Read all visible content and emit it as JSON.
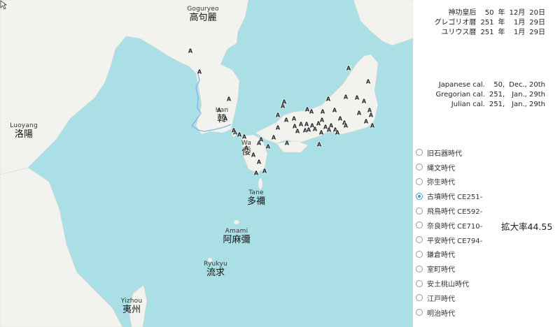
{
  "regions": [
    {
      "id": "goguryeo",
      "en": "Goguryeo",
      "jp": "高句麗"
    },
    {
      "id": "luoyang",
      "en": "Luoyang",
      "jp": "洛陽"
    },
    {
      "id": "han",
      "en": "Han",
      "jp": "韓"
    },
    {
      "id": "wa",
      "en": "Wa",
      "jp": "倭"
    },
    {
      "id": "tane",
      "en": "Tane",
      "jp": "多禰"
    },
    {
      "id": "amami",
      "en": "Amami",
      "jp": "阿麻彌"
    },
    {
      "id": "ryukyu",
      "en": "Ryukyu",
      "jp": "流求"
    },
    {
      "id": "yizhou",
      "en": "Yizhou",
      "jp": "夷州"
    }
  ],
  "site_marker": "A",
  "calendar_jp": [
    {
      "name": "神功皇后",
      "year": "50",
      "year_unit": "年",
      "month": "12月",
      "day": "20日"
    },
    {
      "name": "グレゴリオ暦",
      "year": "251",
      "year_unit": "年",
      "month": "1月",
      "day": "29日"
    },
    {
      "name": "ユリウス暦",
      "year": "251",
      "year_unit": "年",
      "month": "1月",
      "day": "29日"
    }
  ],
  "calendar_en": [
    {
      "name": "Japanese cal.",
      "year": "50,",
      "month_day": "Dec., 20th"
    },
    {
      "name": "Gregorian cal.",
      "year": "251,",
      "month_day": "Jan., 29th"
    },
    {
      "name": "Julian cal.",
      "year": "251,",
      "month_day": "Jan., 29th"
    }
  ],
  "eras": [
    {
      "label": "旧石器時代",
      "selected": false
    },
    {
      "label": "縄文時代",
      "selected": false
    },
    {
      "label": "弥生時代",
      "selected": false
    },
    {
      "label": "古墳時代 CE251-",
      "selected": true
    },
    {
      "label": "飛鳥時代 CE592-",
      "selected": false
    },
    {
      "label": "奈良時代 CE710-",
      "selected": false
    },
    {
      "label": "平安時代 CE794-",
      "selected": false
    },
    {
      "label": "鎌倉時代",
      "selected": false
    },
    {
      "label": "室町時代",
      "selected": false
    },
    {
      "label": "安土桃山時代",
      "selected": false
    },
    {
      "label": "江戸時代",
      "selected": false
    },
    {
      "label": "明治時代",
      "selected": false
    }
  ],
  "zoom_text": "拡大率44.55",
  "colors": {
    "sea": "#aadfe6",
    "land": "#f2f2ee",
    "river": "#7cb6ea",
    "accent": "#3aa0d0"
  }
}
